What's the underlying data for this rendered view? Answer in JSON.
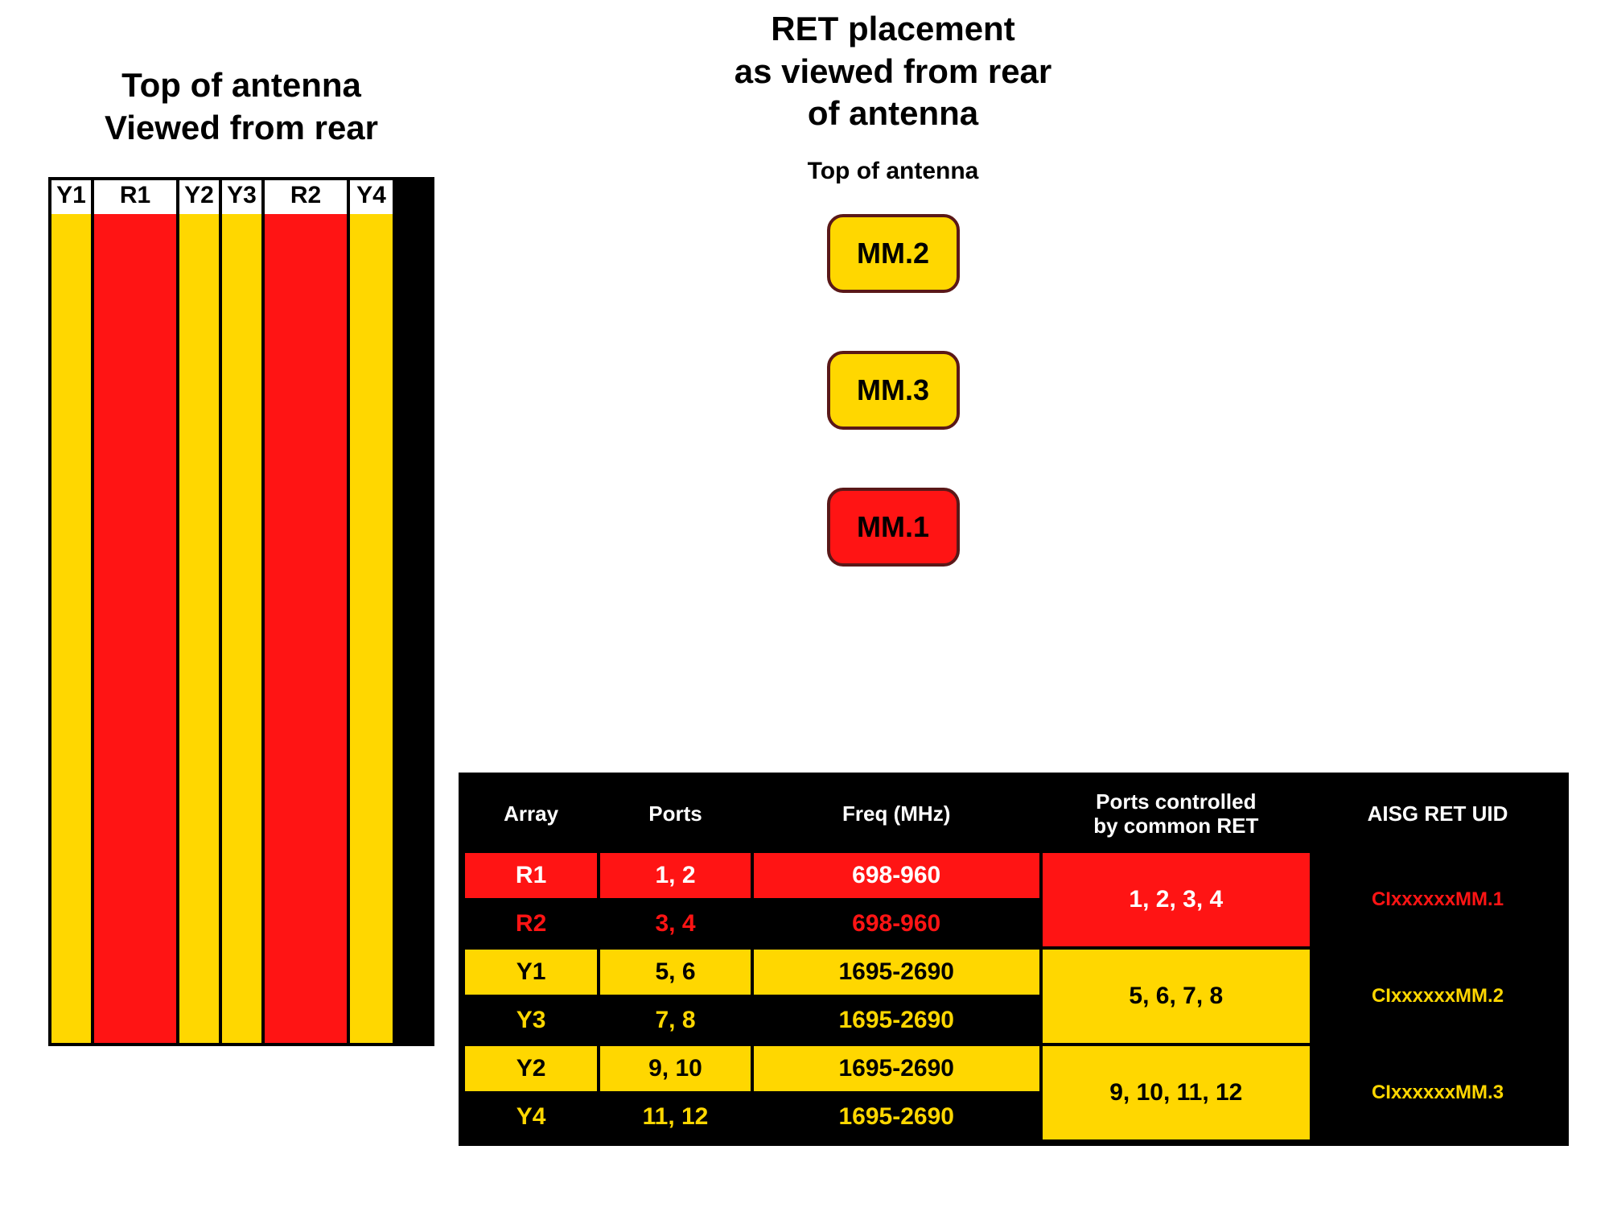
{
  "colors": {
    "yellow": "#ffd700",
    "red": "#ff1414",
    "black": "#000000",
    "white": "#ffffff",
    "badgeBorder": "#5a1818"
  },
  "left": {
    "title_line1": "Top of antenna",
    "title_line2": "Viewed from rear",
    "arrays": [
      {
        "label": "Y1",
        "color": "#ffd700",
        "width": "narrow"
      },
      {
        "label": "R1",
        "color": "#ff1414",
        "width": "wide"
      },
      {
        "label": "Y2",
        "color": "#ffd700",
        "width": "narrow"
      },
      {
        "label": "Y3",
        "color": "#ffd700",
        "width": "narrow"
      },
      {
        "label": "R2",
        "color": "#ff1414",
        "width": "wide"
      },
      {
        "label": "Y4",
        "color": "#ffd700",
        "width": "narrow"
      }
    ]
  },
  "right": {
    "title_line1": "RET placement",
    "title_line2": "as viewed from rear",
    "title_line3": "of antenna",
    "subtitle": "Top of antenna",
    "badges": [
      {
        "label": "MM.2",
        "bg": "#ffd700"
      },
      {
        "label": "MM.3",
        "bg": "#ffd700"
      },
      {
        "label": "MM.1",
        "bg": "#ff1414"
      }
    ]
  },
  "table": {
    "headers": {
      "array": "Array",
      "ports": "Ports",
      "freq": "Freq (MHz)",
      "ctrl_line1": "Ports controlled",
      "ctrl_line2": "by common RET",
      "uid": "AISG RET UID"
    },
    "groups": [
      {
        "ctrl": "1, 2, 3, 4",
        "ctrl_bg": "#ff1414",
        "ctrl_color": "#ffffff",
        "uid": "CIxxxxxxMM.1",
        "uid_bg": "#000000",
        "uid_color": "#ff1414",
        "rows": [
          {
            "array": "R1",
            "ports": "1, 2",
            "freq": "698-960",
            "bg": "#ff1414",
            "fg": "#ffffff"
          },
          {
            "array": "R2",
            "ports": "3, 4",
            "freq": "698-960",
            "bg": "#000000",
            "fg": "#ff1414"
          }
        ]
      },
      {
        "ctrl": "5, 6, 7, 8",
        "ctrl_bg": "#ffd700",
        "ctrl_color": "#000000",
        "uid": "CIxxxxxxMM.2",
        "uid_bg": "#000000",
        "uid_color": "#ffd700",
        "rows": [
          {
            "array": "Y1",
            "ports": "5, 6",
            "freq": "1695-2690",
            "bg": "#ffd700",
            "fg": "#000000"
          },
          {
            "array": "Y3",
            "ports": "7, 8",
            "freq": "1695-2690",
            "bg": "#000000",
            "fg": "#ffd700"
          }
        ]
      },
      {
        "ctrl": "9, 10, 11, 12",
        "ctrl_bg": "#ffd700",
        "ctrl_color": "#000000",
        "uid": "CIxxxxxxMM.3",
        "uid_bg": "#000000",
        "uid_color": "#ffd700",
        "rows": [
          {
            "array": "Y2",
            "ports": "9, 10",
            "freq": "1695-2690",
            "bg": "#ffd700",
            "fg": "#000000"
          },
          {
            "array": "Y4",
            "ports": "11, 12",
            "freq": "1695-2690",
            "bg": "#000000",
            "fg": "#ffd700"
          }
        ]
      }
    ]
  }
}
